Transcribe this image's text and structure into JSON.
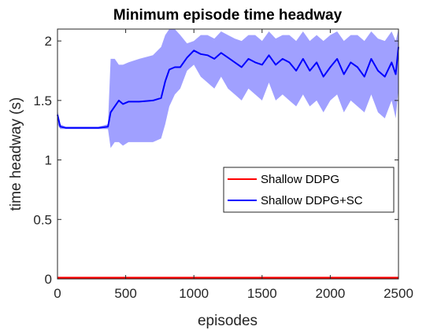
{
  "chart_data": {
    "type": "line",
    "title": "Minimum episode time headway",
    "xlabel": "episodes",
    "ylabel": "time headway (s)",
    "xlim": [
      0,
      2500
    ],
    "ylim": [
      0,
      2.1
    ],
    "xticks": [
      0,
      500,
      1000,
      1500,
      2000,
      2500
    ],
    "xtick_labels": [
      "0",
      "500",
      "1000",
      "1500",
      "2000",
      "2500"
    ],
    "yticks": [
      0,
      0.5,
      1,
      1.5,
      2
    ],
    "ytick_labels": [
      "0",
      "0.5",
      "1",
      "1.5",
      "2"
    ],
    "grid": false,
    "legend_position": "center-right",
    "series": [
      {
        "name": "Shallow DDPG",
        "color": "#ff0000",
        "x": [
          0,
          500,
          1000,
          1500,
          2000,
          2500
        ],
        "y": [
          0.01,
          0.01,
          0.01,
          0.01,
          0.01,
          0.01
        ],
        "band_lower": [
          0.0,
          0.0,
          0.0,
          0.0,
          0.0,
          0.0
        ],
        "band_upper": [
          0.02,
          0.02,
          0.02,
          0.02,
          0.02,
          0.02
        ]
      },
      {
        "name": "Shallow DDPG+SC",
        "color": "#0000ff",
        "band_color": "#8080ff",
        "x": [
          0,
          20,
          60,
          100,
          200,
          300,
          370,
          390,
          420,
          450,
          480,
          520,
          600,
          700,
          760,
          790,
          820,
          860,
          900,
          950,
          1000,
          1050,
          1100,
          1150,
          1200,
          1250,
          1300,
          1350,
          1400,
          1450,
          1500,
          1550,
          1600,
          1650,
          1700,
          1750,
          1800,
          1850,
          1900,
          1950,
          2000,
          2050,
          2100,
          2150,
          2200,
          2250,
          2300,
          2350,
          2400,
          2450,
          2480,
          2500
        ],
        "y": [
          1.38,
          1.28,
          1.27,
          1.27,
          1.27,
          1.27,
          1.28,
          1.4,
          1.45,
          1.5,
          1.47,
          1.49,
          1.49,
          1.5,
          1.52,
          1.66,
          1.76,
          1.78,
          1.78,
          1.86,
          1.92,
          1.89,
          1.88,
          1.85,
          1.9,
          1.86,
          1.82,
          1.78,
          1.85,
          1.82,
          1.8,
          1.88,
          1.8,
          1.85,
          1.82,
          1.75,
          1.85,
          1.75,
          1.82,
          1.7,
          1.78,
          1.85,
          1.72,
          1.82,
          1.78,
          1.7,
          1.85,
          1.75,
          1.7,
          1.82,
          1.72,
          1.95
        ],
        "band_lower": [
          1.3,
          1.26,
          1.26,
          1.26,
          1.26,
          1.26,
          1.26,
          1.1,
          1.15,
          1.15,
          1.12,
          1.15,
          1.15,
          1.15,
          1.18,
          1.3,
          1.45,
          1.55,
          1.6,
          1.75,
          1.8,
          1.7,
          1.65,
          1.6,
          1.7,
          1.6,
          1.55,
          1.5,
          1.6,
          1.55,
          1.5,
          1.65,
          1.5,
          1.55,
          1.5,
          1.45,
          1.55,
          1.45,
          1.5,
          1.4,
          1.5,
          1.55,
          1.4,
          1.5,
          1.45,
          1.4,
          1.55,
          1.4,
          1.35,
          1.5,
          1.35,
          1.6
        ],
        "band_upper": [
          1.42,
          1.3,
          1.28,
          1.28,
          1.28,
          1.28,
          1.3,
          1.85,
          1.85,
          1.8,
          1.8,
          1.82,
          1.85,
          1.88,
          1.95,
          2.05,
          2.1,
          2.1,
          2.05,
          1.98,
          2.0,
          2.05,
          2.05,
          2.02,
          2.08,
          2.05,
          2.02,
          2.0,
          2.05,
          2.05,
          2.0,
          2.08,
          2.02,
          2.05,
          2.05,
          2.0,
          2.08,
          2.0,
          2.05,
          2.0,
          2.05,
          2.08,
          2.0,
          2.05,
          2.05,
          2.0,
          2.08,
          2.02,
          2.0,
          2.08,
          2.0,
          2.1
        ]
      }
    ]
  }
}
